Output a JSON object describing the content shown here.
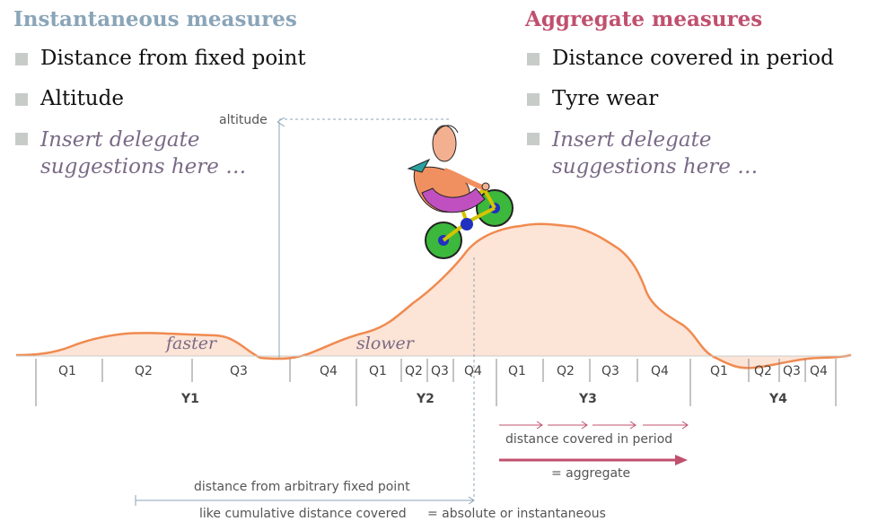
{
  "left_panel": {
    "heading": "Instantaneous measures",
    "items": [
      "Distance from fixed point",
      "Altitude"
    ],
    "placeholder_line1": "Insert delegate",
    "placeholder_line2": "suggestions here …"
  },
  "right_panel": {
    "heading": "Aggregate measures",
    "items": [
      "Distance covered in period",
      "Tyre wear"
    ],
    "placeholder_line1": "Insert delegate",
    "placeholder_line2": "suggestions here …"
  },
  "graph": {
    "altitude_label": "altitude",
    "faster_label": "faster",
    "slower_label": "slower",
    "quarters": [
      "Q1",
      "Q2",
      "Q3",
      "Q4",
      "Q1",
      "Q2",
      "Q3",
      "Q4",
      "Q1",
      "Q2",
      "Q3",
      "Q4",
      "Q1",
      "Q2",
      "Q3",
      "Q4"
    ],
    "years": [
      "Y1",
      "Y2",
      "Y3",
      "Y4"
    ]
  },
  "annotations": {
    "distance_covered": "distance covered in period",
    "aggregate": "= aggregate",
    "distance_fixed": "distance from arbitrary fixed point",
    "cumulative": "like cumulative distance covered",
    "absolute": "= absolute or instantaneous"
  },
  "colors": {
    "left_heading": "#8aa5b8",
    "right_heading": "#c0506e",
    "curve": "#f08a50",
    "fill": "#fce4d6",
    "arrow": "#c0506e"
  },
  "icons": [
    "cyclist-clipart"
  ]
}
